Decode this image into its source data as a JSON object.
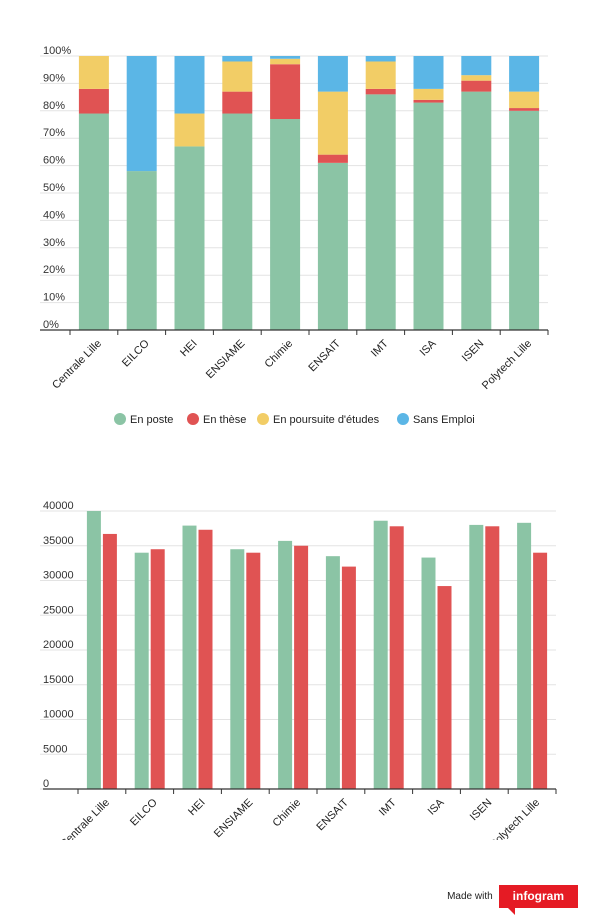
{
  "chart_data": [
    {
      "type": "bar",
      "stacked": true,
      "categories": [
        "Centrale Lille",
        "EILCO",
        "HEI",
        "ENSIAME",
        "Chimie",
        "ENSAIT",
        "IMT",
        "ISA",
        "ISEN",
        "Polytech Lille"
      ],
      "series": [
        {
          "name": "En poste",
          "color": "#8bc4a5",
          "values": [
            79,
            58,
            67,
            79,
            77,
            61,
            86,
            83,
            87,
            80
          ]
        },
        {
          "name": "En thèse",
          "color": "#e05353",
          "values": [
            9,
            0,
            0,
            8,
            20,
            3,
            2,
            1,
            4,
            1
          ]
        },
        {
          "name": "En poursuite d'études",
          "color": "#f2cd66",
          "values": [
            12,
            0,
            12,
            11,
            2,
            23,
            10,
            4,
            2,
            6
          ]
        },
        {
          "name": "Sans Emploi",
          "color": "#5bb6e6",
          "values": [
            0,
            42,
            21,
            2,
            1,
            13,
            2,
            12,
            7,
            13
          ]
        }
      ],
      "y_ticks": [
        "0%",
        "10%",
        "20%",
        "30%",
        "40%",
        "50%",
        "60%",
        "70%",
        "80%",
        "90%",
        "100%"
      ],
      "ylim": [
        0,
        100
      ],
      "legend_position": "bottom",
      "grid": true
    },
    {
      "type": "bar",
      "categories": [
        "Centrale Lille",
        "EILCO",
        "HEI",
        "ENSIAME",
        "Chimie",
        "ENSAIT",
        "IMT",
        "ISA",
        "ISEN",
        "Polytech Lille"
      ],
      "series": [
        {
          "color": "#8bc4a5",
          "values": [
            40000,
            34000,
            37900,
            34500,
            35700,
            33500,
            38600,
            33300,
            38000,
            38300
          ]
        },
        {
          "color": "#e05353",
          "values": [
            36700,
            34500,
            37300,
            34000,
            35000,
            32000,
            37800,
            29200,
            37800,
            34000
          ]
        }
      ],
      "y_ticks": [
        "0",
        "5000",
        "10000",
        "15000",
        "20000",
        "25000",
        "30000",
        "35000",
        "40000"
      ],
      "ylim": [
        0,
        40000
      ],
      "legend_position": "none",
      "grid": true
    }
  ],
  "footer": {
    "made_with": "Made with",
    "brand": "infogram",
    "brand_color": "#e51b24"
  }
}
